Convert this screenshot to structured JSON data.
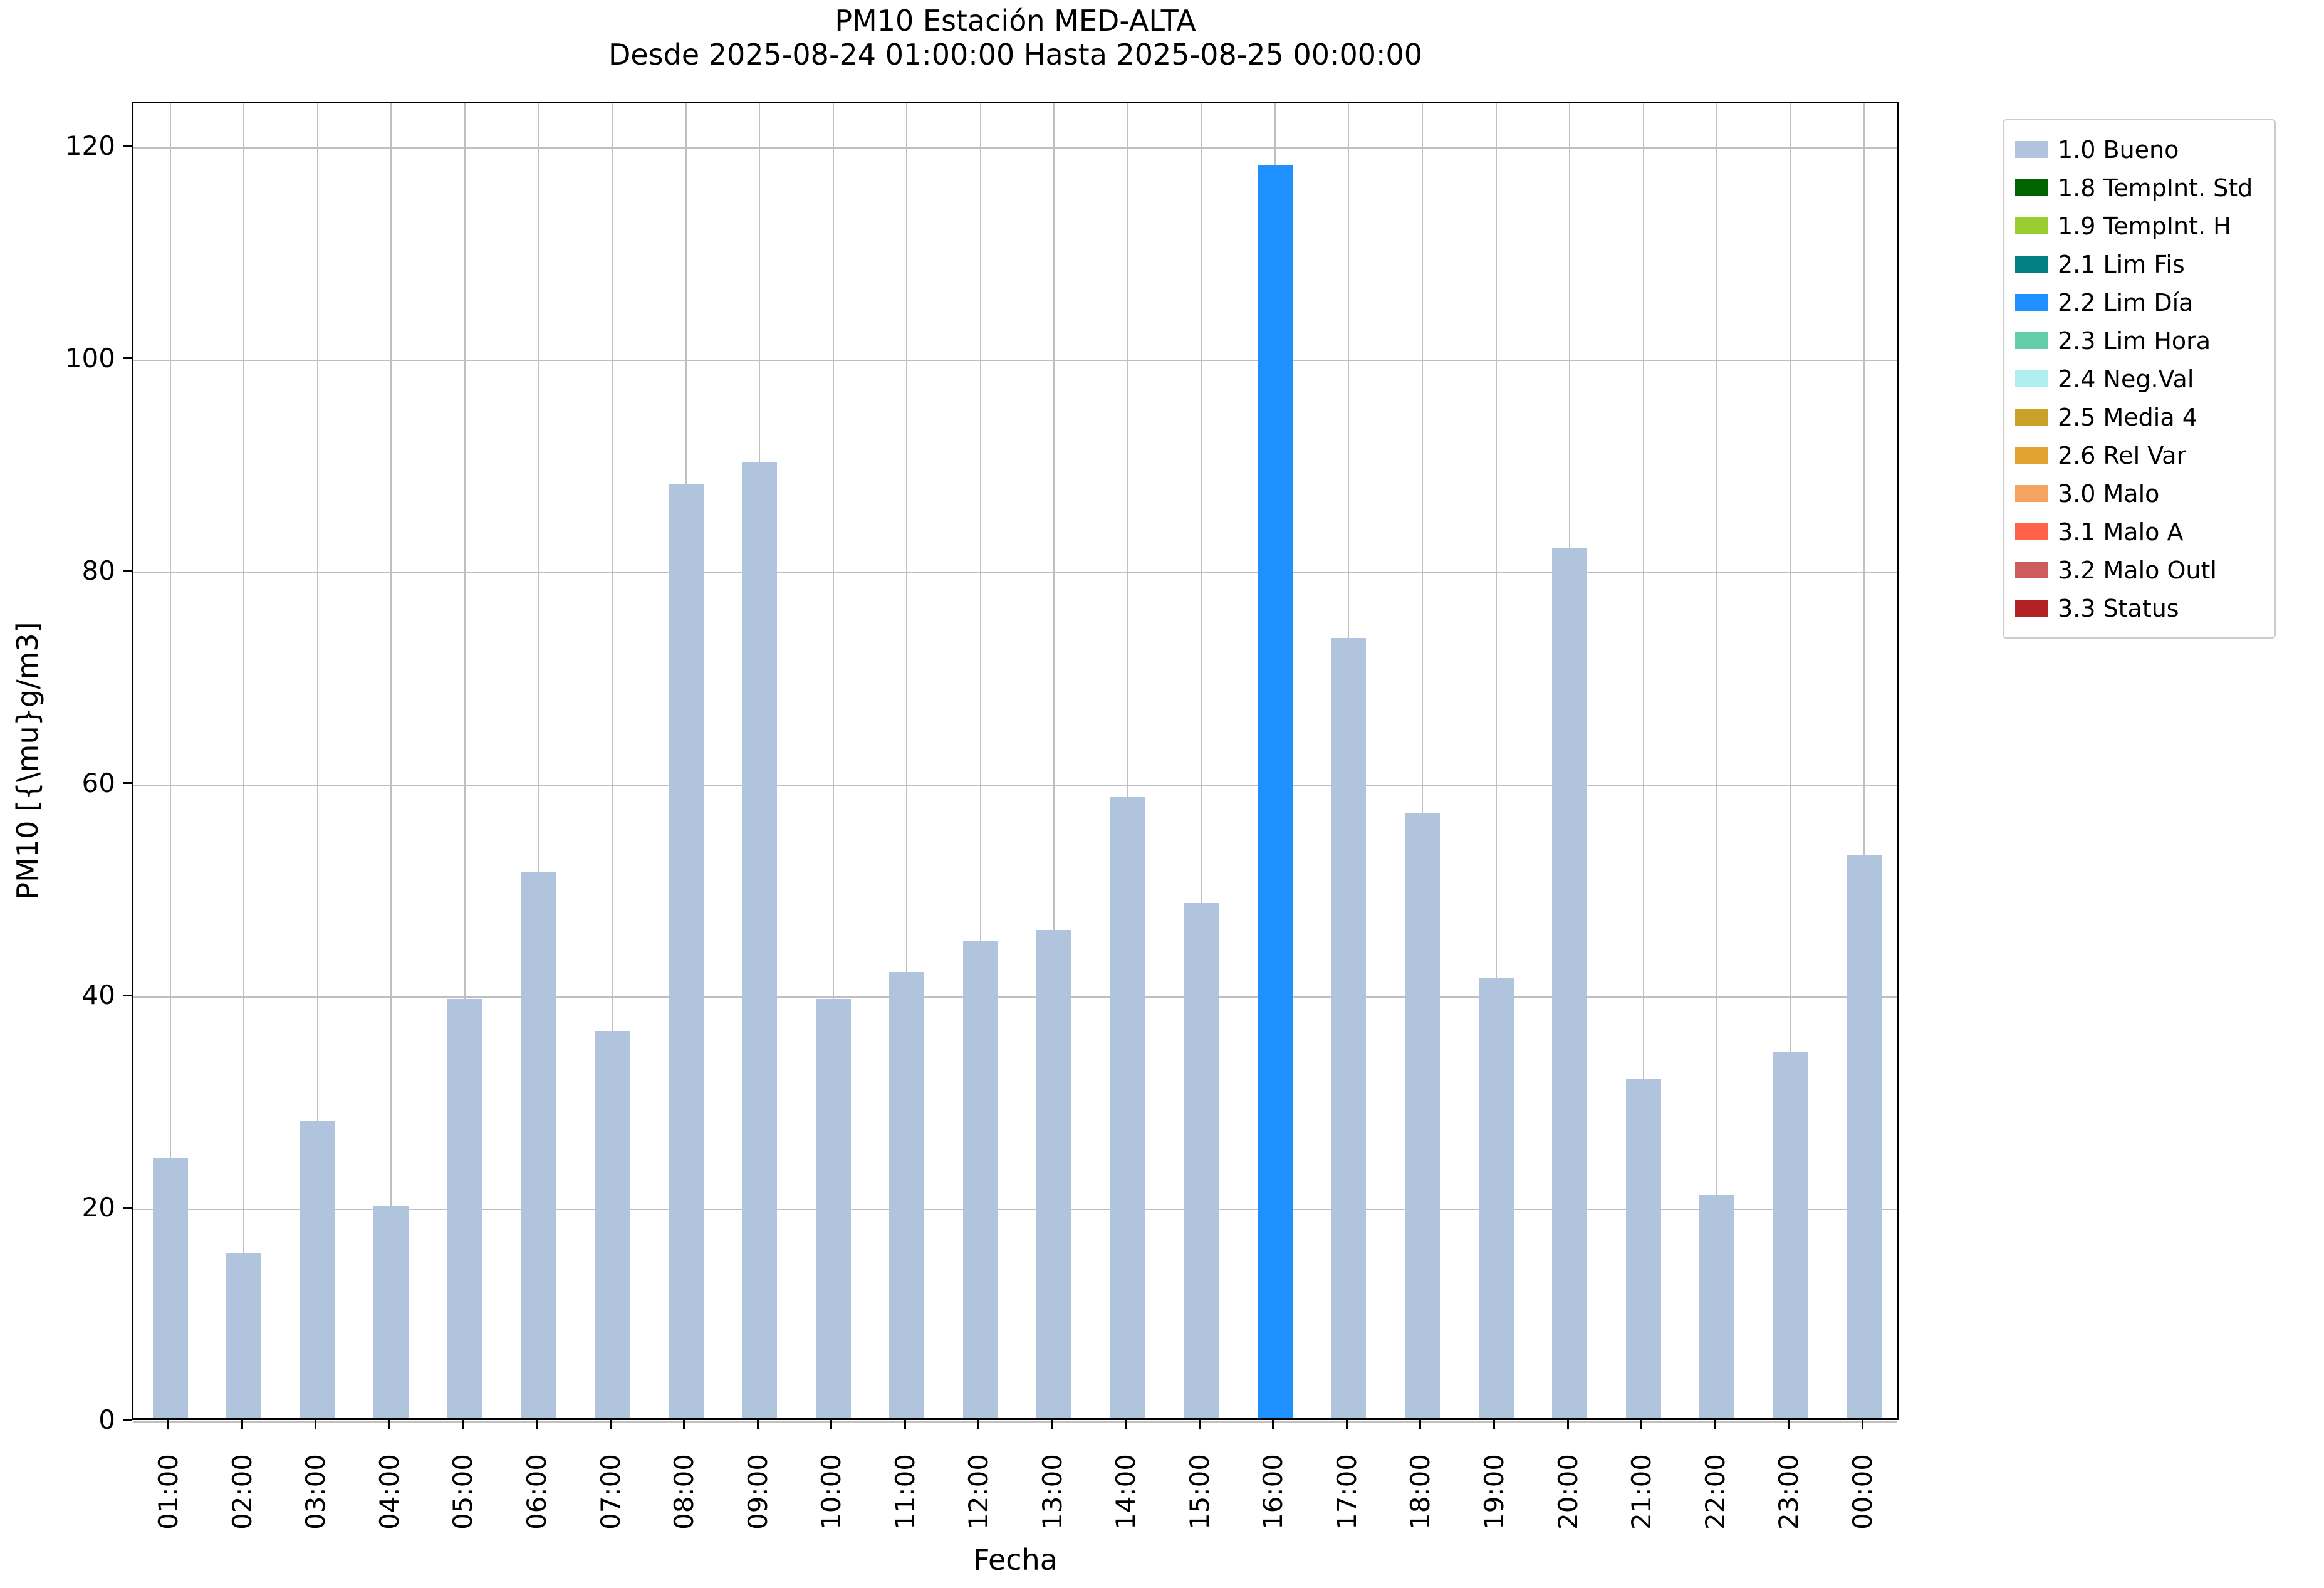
{
  "chart_data": {
    "type": "bar",
    "title": "PM10 Estación MED-ALTA",
    "subtitle": "Desde 2025-08-24 01:00:00 Hasta 2025-08-25 00:00:00",
    "xlabel": "Fecha",
    "ylabel": "PM10 [{\\mu}g/m3]",
    "ylim": [
      0,
      120
    ],
    "yticks": [
      0,
      20,
      40,
      60,
      80,
      100,
      120
    ],
    "grid": true,
    "legend_position": "outside-top-right",
    "categories": [
      "01:00",
      "02:00",
      "03:00",
      "04:00",
      "05:00",
      "06:00",
      "07:00",
      "08:00",
      "09:00",
      "10:00",
      "11:00",
      "12:00",
      "13:00",
      "14:00",
      "15:00",
      "16:00",
      "17:00",
      "18:00",
      "19:00",
      "20:00",
      "21:00",
      "22:00",
      "23:00",
      "00:00"
    ],
    "values": [
      24.5,
      15.5,
      28,
      20,
      39.5,
      51.5,
      36.5,
      88,
      90,
      39.5,
      42,
      45,
      46,
      58.5,
      48.5,
      118,
      73.5,
      57,
      41.5,
      82,
      32,
      21,
      34.5,
      53
    ],
    "bar_status": [
      "1.0 Bueno",
      "1.0 Bueno",
      "1.0 Bueno",
      "1.0 Bueno",
      "1.0 Bueno",
      "1.0 Bueno",
      "1.0 Bueno",
      "1.0 Bueno",
      "1.0 Bueno",
      "1.0 Bueno",
      "1.0 Bueno",
      "1.0 Bueno",
      "1.0 Bueno",
      "1.0 Bueno",
      "1.0 Bueno",
      "2.2 Lim Día",
      "1.0 Bueno",
      "1.0 Bueno",
      "1.0 Bueno",
      "1.0 Bueno",
      "1.0 Bueno",
      "1.0 Bueno",
      "1.0 Bueno",
      "1.0 Bueno"
    ],
    "legend": [
      {
        "label": "1.0 Bueno",
        "color": "#b0c4de"
      },
      {
        "label": "1.8 TempInt. Std",
        "color": "#006400"
      },
      {
        "label": "1.9 TempInt. H",
        "color": "#9acd32"
      },
      {
        "label": "2.1 Lim Fis",
        "color": "#008080"
      },
      {
        "label": "2.2 Lim Día",
        "color": "#1e90ff"
      },
      {
        "label": "2.3 Lim Hora",
        "color": "#66cdaa"
      },
      {
        "label": "2.4 Neg.Val",
        "color": "#afeeee"
      },
      {
        "label": "2.5 Media 4",
        "color": "#c9a227"
      },
      {
        "label": "2.6 Rel Var",
        "color": "#e0a32e"
      },
      {
        "label": "3.0 Malo",
        "color": "#f4a460"
      },
      {
        "label": "3.1 Malo A",
        "color": "#ff6347"
      },
      {
        "label": "3.2 Malo Outl",
        "color": "#cd5c5c"
      },
      {
        "label": "3.3 Status",
        "color": "#b22222"
      }
    ]
  }
}
